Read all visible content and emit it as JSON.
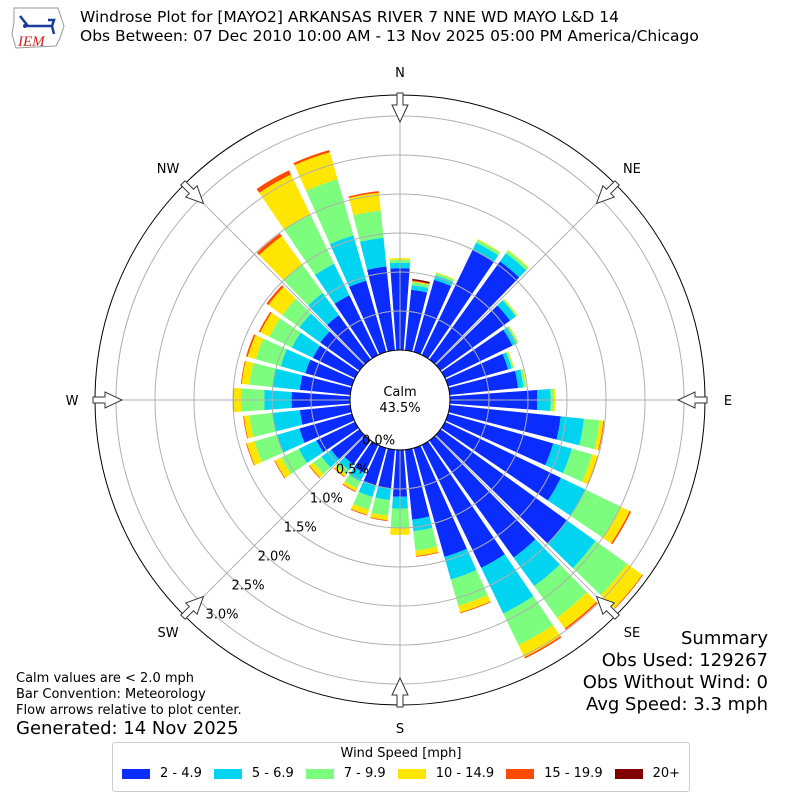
{
  "header": {
    "logo_text": "IEM",
    "title_line1": "Windrose Plot for [MAYO2] ARKANSAS RIVER 7 NNE WD MAYO L&D 14",
    "title_line2": "Obs Between: 07 Dec 2010 10:00 AM - 13 Nov 2025 05:00 PM America/Chicago"
  },
  "notes": {
    "line1": "Calm values are < 2.0 mph",
    "line2": "Bar Convention: Meteorology",
    "line3": "Flow arrows relative to plot center.",
    "generated": "Generated: 14 Nov 2025"
  },
  "summary": {
    "title": "Summary",
    "obs_used": "Obs Used: 129267",
    "obs_without_wind": "Obs Without Wind: 0",
    "avg_speed": "Avg Speed: 3.3 mph"
  },
  "legend": {
    "title": "Wind Speed [mph]",
    "items": [
      {
        "label": "2 - 4.9",
        "color": "#0a2cff"
      },
      {
        "label": "5 - 6.9",
        "color": "#00d4f0"
      },
      {
        "label": "7 - 9.9",
        "color": "#7dfd7d"
      },
      {
        "label": "10 - 14.9",
        "color": "#ffe600"
      },
      {
        "label": "15 - 19.9",
        "color": "#ff4a00"
      },
      {
        "label": "20+",
        "color": "#800000"
      }
    ]
  },
  "chart_data": {
    "type": "windrose",
    "title": "Windrose Plot for [MAYO2] ARKANSAS RIVER 7 NNE WD MAYO L&D 14",
    "calm_label": "Calm",
    "calm_percent": "43.5%",
    "compass_labels": [
      "N",
      "NE",
      "E",
      "SE",
      "S",
      "SW",
      "W",
      "NW"
    ],
    "radial_tick_labels": [
      "0.0%",
      "0.5%",
      "1.0%",
      "1.5%",
      "2.0%",
      "2.5%",
      "3.0%"
    ],
    "radial_ticks": [
      0.0,
      0.5,
      1.0,
      1.5,
      2.0,
      2.5,
      3.0
    ],
    "rmax": 3.25,
    "bin_width_deg": 10,
    "speed_bins": [
      "2 - 4.9",
      "5 - 6.9",
      "7 - 9.9",
      "10 - 14.9",
      "15 - 19.9",
      "20+"
    ],
    "directions": [
      0,
      10,
      20,
      30,
      40,
      50,
      60,
      70,
      80,
      90,
      100,
      110,
      120,
      130,
      140,
      150,
      160,
      170,
      180,
      190,
      200,
      210,
      220,
      230,
      240,
      250,
      260,
      270,
      280,
      290,
      300,
      310,
      320,
      330,
      340,
      350
    ],
    "cumulative_percent": [
      [
        1.05,
        1.12,
        1.16,
        1.18,
        1.18,
        1.18
      ],
      [
        0.78,
        0.84,
        0.88,
        0.89,
        0.9,
        0.92
      ],
      [
        0.96,
        1.02,
        1.05,
        1.06,
        1.06,
        1.06
      ],
      [
        1.5,
        1.6,
        1.64,
        1.65,
        1.65,
        1.65
      ],
      [
        1.55,
        1.68,
        1.72,
        1.73,
        1.73,
        1.73
      ],
      [
        1.1,
        1.19,
        1.21,
        1.22,
        1.22,
        1.22
      ],
      [
        0.96,
        1.02,
        1.04,
        1.05,
        1.05,
        1.05
      ],
      [
        0.8,
        0.85,
        0.87,
        0.88,
        0.88,
        0.88
      ],
      [
        0.88,
        0.95,
        0.98,
        0.99,
        0.99,
        0.99
      ],
      [
        1.12,
        1.29,
        1.33,
        1.35,
        1.35,
        1.35
      ],
      [
        1.43,
        1.73,
        1.93,
        1.98,
        1.99,
        1.99
      ],
      [
        1.4,
        1.65,
        1.92,
        1.99,
        2.0,
        2.0
      ],
      [
        1.65,
        2.0,
        2.5,
        2.63,
        2.65,
        2.65
      ],
      [
        2.0,
        2.45,
        2.95,
        3.19,
        3.2,
        3.2
      ],
      [
        1.85,
        2.3,
        2.8,
        2.97,
        2.99,
        2.99
      ],
      [
        1.75,
        2.4,
        2.85,
        3.02,
        3.04,
        3.04
      ],
      [
        1.45,
        1.75,
        2.1,
        2.19,
        2.2,
        2.2
      ],
      [
        0.9,
        1.05,
        1.3,
        1.37,
        1.38,
        1.38
      ],
      [
        0.6,
        0.75,
        1.0,
        1.09,
        1.09,
        1.09
      ],
      [
        0.5,
        0.65,
        0.85,
        0.91,
        0.92,
        0.92
      ],
      [
        0.5,
        0.65,
        0.82,
        0.89,
        0.9,
        0.9
      ],
      [
        0.4,
        0.52,
        0.62,
        0.66,
        0.67,
        0.67
      ],
      [
        0.38,
        0.47,
        0.54,
        0.57,
        0.58,
        0.58
      ],
      [
        0.45,
        0.6,
        0.73,
        0.79,
        0.8,
        0.8
      ],
      [
        0.55,
        0.8,
        1.05,
        1.14,
        1.15,
        1.15
      ],
      [
        0.7,
        1.0,
        1.3,
        1.4,
        1.41,
        1.41
      ],
      [
        0.65,
        1.0,
        1.3,
        1.37,
        1.38,
        1.38
      ],
      [
        0.75,
        1.1,
        1.4,
        1.49,
        1.5,
        1.5
      ],
      [
        0.65,
        1.0,
        1.3,
        1.4,
        1.41,
        1.41
      ],
      [
        0.62,
        0.95,
        1.28,
        1.39,
        1.41,
        1.41
      ],
      [
        0.6,
        0.9,
        1.22,
        1.35,
        1.37,
        1.37
      ],
      [
        0.62,
        0.95,
        1.22,
        1.44,
        1.47,
        1.47
      ],
      [
        0.7,
        1.05,
        1.5,
        1.95,
        1.99,
        1.99
      ],
      [
        0.85,
        1.3,
        2.0,
        2.57,
        2.63,
        2.63
      ],
      [
        0.95,
        1.55,
        2.3,
        2.66,
        2.69,
        2.69
      ],
      [
        1.08,
        1.45,
        1.8,
        2.03,
        2.05,
        2.05
      ]
    ],
    "grid": true,
    "legend_position": "bottom"
  }
}
